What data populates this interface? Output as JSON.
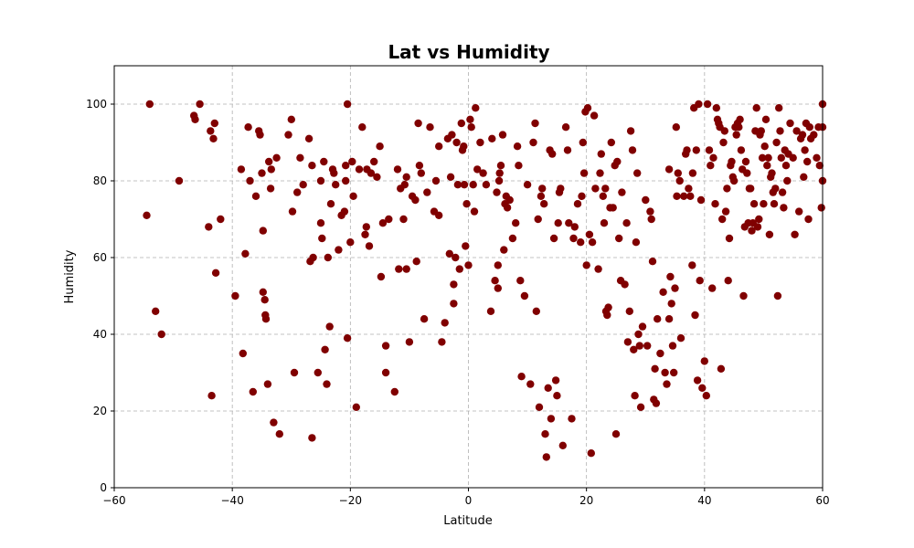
{
  "chart_data": {
    "type": "scatter",
    "title": "Lat vs Humidity",
    "xlabel": "Latitude",
    "ylabel": "Humidity",
    "xlim": [
      -60,
      60
    ],
    "ylim": [
      0,
      110
    ],
    "xticks": [
      -60,
      -40,
      -20,
      0,
      20,
      40,
      60
    ],
    "yticks": [
      0,
      20,
      40,
      60,
      80,
      100
    ],
    "grid": true,
    "marker_color": "#800000",
    "points": [
      [
        -54.5,
        71
      ],
      [
        -54,
        100
      ],
      [
        -53,
        46
      ],
      [
        -52,
        40
      ],
      [
        -49,
        80
      ],
      [
        -46.5,
        97
      ],
      [
        -46.3,
        96
      ],
      [
        -45.5,
        100
      ],
      [
        -44,
        68
      ],
      [
        -43.7,
        93
      ],
      [
        -43.5,
        24
      ],
      [
        -43,
        95
      ],
      [
        -43.2,
        91
      ],
      [
        -42.8,
        56
      ],
      [
        -42,
        70
      ],
      [
        -39.5,
        50
      ],
      [
        -38.5,
        83
      ],
      [
        -38.2,
        35
      ],
      [
        -37.8,
        61
      ],
      [
        -37.3,
        94
      ],
      [
        -37,
        80
      ],
      [
        -36.5,
        25
      ],
      [
        -36,
        76
      ],
      [
        -35.5,
        93
      ],
      [
        -35.3,
        92
      ],
      [
        -35,
        82
      ],
      [
        -34.8,
        67
      ],
      [
        -34.8,
        51
      ],
      [
        -34.5,
        49
      ],
      [
        -34.4,
        45
      ],
      [
        -34.3,
        44
      ],
      [
        -34,
        27
      ],
      [
        -33.8,
        85
      ],
      [
        -33.5,
        78
      ],
      [
        -33.4,
        83
      ],
      [
        -33,
        17
      ],
      [
        -32.5,
        86
      ],
      [
        -32,
        14
      ],
      [
        -30.5,
        92
      ],
      [
        -30,
        96
      ],
      [
        -29.8,
        72
      ],
      [
        -29.5,
        30
      ],
      [
        -29,
        77
      ],
      [
        -28.5,
        86
      ],
      [
        -28,
        79
      ],
      [
        -27,
        91
      ],
      [
        -26.8,
        59
      ],
      [
        -26.5,
        84
      ],
      [
        -26.5,
        13
      ],
      [
        -26.3,
        60
      ],
      [
        -25.5,
        30
      ],
      [
        -25,
        80
      ],
      [
        -25,
        69
      ],
      [
        -24.8,
        65
      ],
      [
        -24.5,
        85
      ],
      [
        -24.3,
        36
      ],
      [
        -24,
        27
      ],
      [
        -23.8,
        60
      ],
      [
        -23.5,
        42
      ],
      [
        -23.3,
        74
      ],
      [
        -23,
        83
      ],
      [
        -22.8,
        82
      ],
      [
        -22.5,
        79
      ],
      [
        -22,
        62
      ],
      [
        -21.5,
        71
      ],
      [
        -21,
        72
      ],
      [
        -20.8,
        80
      ],
      [
        -20.8,
        84
      ],
      [
        -20.5,
        39
      ],
      [
        -20.5,
        100
      ],
      [
        -20,
        64
      ],
      [
        -19.7,
        85
      ],
      [
        -19.5,
        76
      ],
      [
        -19,
        21
      ],
      [
        -18.5,
        83
      ],
      [
        -18,
        94
      ],
      [
        -17.5,
        66
      ],
      [
        -17.3,
        68
      ],
      [
        -17.2,
        83
      ],
      [
        -16.8,
        63
      ],
      [
        -16.5,
        82
      ],
      [
        -16,
        85
      ],
      [
        -15.5,
        81
      ],
      [
        -15,
        89
      ],
      [
        -14.8,
        55
      ],
      [
        -14.5,
        69
      ],
      [
        -14,
        37
      ],
      [
        -14,
        30
      ],
      [
        -13.5,
        70
      ],
      [
        -12.5,
        25
      ],
      [
        -12,
        83
      ],
      [
        -11.8,
        57
      ],
      [
        -11.5,
        78
      ],
      [
        -11,
        70
      ],
      [
        -10.8,
        79
      ],
      [
        -10.5,
        57
      ],
      [
        -10.5,
        81
      ],
      [
        -10,
        38
      ],
      [
        -9.5,
        76
      ],
      [
        -9,
        75
      ],
      [
        -8.8,
        59
      ],
      [
        -8.5,
        95
      ],
      [
        -8.3,
        84
      ],
      [
        -8,
        82
      ],
      [
        -7.5,
        44
      ],
      [
        -7,
        77
      ],
      [
        -6.5,
        94
      ],
      [
        -5.8,
        72
      ],
      [
        -5.5,
        80
      ],
      [
        -5,
        71
      ],
      [
        -5,
        89
      ],
      [
        -4.5,
        38
      ],
      [
        -4,
        43
      ],
      [
        -3.5,
        91
      ],
      [
        -3.2,
        61
      ],
      [
        -3,
        81
      ],
      [
        -2.8,
        92
      ],
      [
        -2.5,
        53
      ],
      [
        -2.5,
        48
      ],
      [
        -2.2,
        60
      ],
      [
        -2,
        90
      ],
      [
        -1.8,
        79
      ],
      [
        -1.5,
        57
      ],
      [
        -1.2,
        95
      ],
      [
        -1,
        88
      ],
      [
        -0.8,
        89
      ],
      [
        -0.7,
        79
      ],
      [
        -0.5,
        63
      ],
      [
        -0.3,
        74
      ],
      [
        0,
        58
      ],
      [
        0.3,
        96
      ],
      [
        0.5,
        94
      ],
      [
        0.8,
        79
      ],
      [
        1,
        72
      ],
      [
        1.2,
        99
      ],
      [
        1.5,
        83
      ],
      [
        2,
        90
      ],
      [
        2.5,
        82
      ],
      [
        3,
        79
      ],
      [
        3.8,
        46
      ],
      [
        4,
        91
      ],
      [
        4.5,
        54
      ],
      [
        4.8,
        77
      ],
      [
        5,
        52
      ],
      [
        5,
        58
      ],
      [
        5.2,
        80
      ],
      [
        5.3,
        82
      ],
      [
        5.5,
        84
      ],
      [
        5.8,
        92
      ],
      [
        6,
        62
      ],
      [
        6.2,
        74
      ],
      [
        6.4,
        76
      ],
      [
        6.6,
        73
      ],
      [
        7,
        75
      ],
      [
        7.5,
        65
      ],
      [
        8,
        69
      ],
      [
        8.3,
        89
      ],
      [
        8.5,
        84
      ],
      [
        8.8,
        54
      ],
      [
        9,
        29
      ],
      [
        9.5,
        50
      ],
      [
        10,
        79
      ],
      [
        10.5,
        27
      ],
      [
        11,
        90
      ],
      [
        11.3,
        95
      ],
      [
        11.5,
        46
      ],
      [
        11.8,
        70
      ],
      [
        12,
        21
      ],
      [
        12.3,
        76
      ],
      [
        12.5,
        78
      ],
      [
        12.8,
        74
      ],
      [
        13,
        14
      ],
      [
        13.2,
        8
      ],
      [
        13.5,
        26
      ],
      [
        13.8,
        88
      ],
      [
        14,
        18
      ],
      [
        14.2,
        87
      ],
      [
        14.5,
        65
      ],
      [
        14.8,
        28
      ],
      [
        15,
        24
      ],
      [
        15.2,
        69
      ],
      [
        15.4,
        77
      ],
      [
        15.6,
        78
      ],
      [
        16,
        11
      ],
      [
        16.5,
        94
      ],
      [
        16.8,
        88
      ],
      [
        17,
        69
      ],
      [
        17.5,
        18
      ],
      [
        17.8,
        65
      ],
      [
        18,
        68
      ],
      [
        18.5,
        74
      ],
      [
        19,
        64
      ],
      [
        19.2,
        76
      ],
      [
        19.4,
        90
      ],
      [
        19.6,
        82
      ],
      [
        19.8,
        98
      ],
      [
        20,
        58
      ],
      [
        20.2,
        99
      ],
      [
        20.5,
        66
      ],
      [
        20.8,
        9
      ],
      [
        21,
        64
      ],
      [
        21.3,
        97
      ],
      [
        21.5,
        78
      ],
      [
        22,
        57
      ],
      [
        22.3,
        82
      ],
      [
        22.5,
        87
      ],
      [
        22.8,
        76
      ],
      [
        23,
        69
      ],
      [
        23.2,
        78
      ],
      [
        23.3,
        46
      ],
      [
        23.5,
        45
      ],
      [
        23.7,
        47
      ],
      [
        24,
        73
      ],
      [
        24.2,
        90
      ],
      [
        24.5,
        73
      ],
      [
        24.8,
        84
      ],
      [
        25,
        14
      ],
      [
        25.2,
        85
      ],
      [
        25.5,
        65
      ],
      [
        25.8,
        54
      ],
      [
        26,
        77
      ],
      [
        26.5,
        53
      ],
      [
        26.8,
        69
      ],
      [
        27,
        38
      ],
      [
        27.3,
        46
      ],
      [
        27.5,
        93
      ],
      [
        27.8,
        88
      ],
      [
        28,
        36
      ],
      [
        28.2,
        24
      ],
      [
        28.4,
        64
      ],
      [
        28.6,
        82
      ],
      [
        28.8,
        40
      ],
      [
        29,
        37
      ],
      [
        29.2,
        21
      ],
      [
        29.5,
        42
      ],
      [
        30,
        75
      ],
      [
        30.3,
        37
      ],
      [
        30.8,
        72
      ],
      [
        31,
        70
      ],
      [
        31.2,
        59
      ],
      [
        31.4,
        23
      ],
      [
        31.6,
        31
      ],
      [
        31.8,
        22
      ],
      [
        32,
        44
      ],
      [
        32.5,
        35
      ],
      [
        33,
        51
      ],
      [
        33.3,
        30
      ],
      [
        33.6,
        27
      ],
      [
        34,
        83
      ],
      [
        34,
        44
      ],
      [
        34.2,
        55
      ],
      [
        34.4,
        48
      ],
      [
        34.6,
        37
      ],
      [
        34.8,
        30
      ],
      [
        35,
        52
      ],
      [
        35.2,
        94
      ],
      [
        35.3,
        76
      ],
      [
        35.5,
        82
      ],
      [
        35.8,
        80
      ],
      [
        36,
        39
      ],
      [
        36.5,
        76
      ],
      [
        36.8,
        87
      ],
      [
        37,
        88
      ],
      [
        37.3,
        78
      ],
      [
        37.6,
        76
      ],
      [
        37.9,
        58
      ],
      [
        38,
        82
      ],
      [
        38.2,
        99
      ],
      [
        38.4,
        45
      ],
      [
        38.6,
        88
      ],
      [
        38.8,
        28
      ],
      [
        39,
        100
      ],
      [
        39.2,
        54
      ],
      [
        39.4,
        75
      ],
      [
        39.6,
        26
      ],
      [
        40,
        33
      ],
      [
        40.3,
        24
      ],
      [
        40.5,
        100
      ],
      [
        40.8,
        88
      ],
      [
        41,
        84
      ],
      [
        41.3,
        52
      ],
      [
        41.5,
        86
      ],
      [
        41.8,
        74
      ],
      [
        42,
        99
      ],
      [
        42.2,
        96
      ],
      [
        42.4,
        95
      ],
      [
        42.6,
        94
      ],
      [
        42.8,
        31
      ],
      [
        43,
        70
      ],
      [
        43.2,
        90
      ],
      [
        43.4,
        93
      ],
      [
        43.6,
        72
      ],
      [
        43.8,
        78
      ],
      [
        44,
        54
      ],
      [
        44.2,
        65
      ],
      [
        44.4,
        84
      ],
      [
        44.6,
        85
      ],
      [
        44.8,
        81
      ],
      [
        45,
        80
      ],
      [
        45.2,
        94
      ],
      [
        45.4,
        92
      ],
      [
        45.6,
        95
      ],
      [
        45.8,
        94
      ],
      [
        46,
        96
      ],
      [
        46.2,
        88
      ],
      [
        46.4,
        83
      ],
      [
        46.6,
        50
      ],
      [
        46.8,
        68
      ],
      [
        47,
        85
      ],
      [
        47.2,
        82
      ],
      [
        47.4,
        69
      ],
      [
        47.6,
        78
      ],
      [
        47.8,
        78
      ],
      [
        48,
        67
      ],
      [
        48.2,
        69
      ],
      [
        48.4,
        74
      ],
      [
        48.6,
        93
      ],
      [
        48.8,
        99
      ],
      [
        49,
        68
      ],
      [
        49.2,
        70
      ],
      [
        49.4,
        92
      ],
      [
        49.6,
        93
      ],
      [
        49.8,
        86
      ],
      [
        50,
        74
      ],
      [
        50.2,
        89
      ],
      [
        50.4,
        96
      ],
      [
        50.6,
        84
      ],
      [
        50.8,
        86
      ],
      [
        51,
        66
      ],
      [
        51.2,
        81
      ],
      [
        51.4,
        82
      ],
      [
        51.6,
        77
      ],
      [
        51.8,
        74
      ],
      [
        52,
        78
      ],
      [
        52.2,
        90
      ],
      [
        52.4,
        50
      ],
      [
        52.6,
        99
      ],
      [
        52.8,
        93
      ],
      [
        53,
        86
      ],
      [
        53.2,
        77
      ],
      [
        53.4,
        73
      ],
      [
        53.6,
        88
      ],
      [
        53.8,
        84
      ],
      [
        54,
        80
      ],
      [
        54.2,
        87
      ],
      [
        54.5,
        95
      ],
      [
        55,
        86
      ],
      [
        55.3,
        66
      ],
      [
        55.6,
        93
      ],
      [
        56,
        72
      ],
      [
        56.3,
        91
      ],
      [
        56.6,
        92
      ],
      [
        56.8,
        81
      ],
      [
        57,
        88
      ],
      [
        57.2,
        95
      ],
      [
        57.4,
        85
      ],
      [
        57.6,
        70
      ],
      [
        57.8,
        94
      ],
      [
        58,
        91
      ],
      [
        58.5,
        92
      ],
      [
        59,
        86
      ],
      [
        59.3,
        94
      ],
      [
        59.5,
        84
      ],
      [
        59.8,
        73
      ],
      [
        60,
        80
      ],
      [
        60,
        94
      ],
      [
        60,
        100
      ]
    ]
  }
}
